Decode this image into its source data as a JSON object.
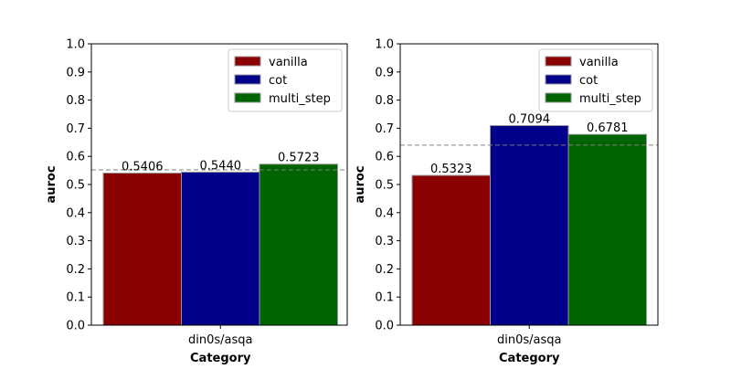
{
  "colors": {
    "vanilla": "#8b0000",
    "cot": "#00008b",
    "multi_step": "#006400",
    "mean_line": "#808080"
  },
  "chart_data": [
    {
      "type": "bar",
      "categories": [
        "din0s/asqa"
      ],
      "series": [
        {
          "name": "vanilla",
          "values": [
            0.5406
          ]
        },
        {
          "name": "cot",
          "values": [
            0.544
          ]
        },
        {
          "name": "multi_step",
          "values": [
            0.5723
          ]
        }
      ],
      "mean_line": 0.552,
      "title": "",
      "xlabel": "Category",
      "ylabel": "auroc",
      "ylim": [
        0,
        1.0
      ],
      "yticks": [
        "0.0",
        "0.1",
        "0.2",
        "0.3",
        "0.4",
        "0.5",
        "0.6",
        "0.7",
        "0.8",
        "0.9",
        "1.0"
      ],
      "legend_position": "top-right",
      "grid": false
    },
    {
      "type": "bar",
      "categories": [
        "din0s/asqa"
      ],
      "series": [
        {
          "name": "vanilla",
          "values": [
            0.5323
          ]
        },
        {
          "name": "cot",
          "values": [
            0.7094
          ]
        },
        {
          "name": "multi_step",
          "values": [
            0.6781
          ]
        }
      ],
      "mean_line": 0.64,
      "title": "",
      "xlabel": "Category",
      "ylabel": "auroc",
      "ylim": [
        0,
        1.0
      ],
      "yticks": [
        "0.0",
        "0.1",
        "0.2",
        "0.3",
        "0.4",
        "0.5",
        "0.6",
        "0.7",
        "0.8",
        "0.9",
        "1.0"
      ],
      "legend_position": "top-right",
      "grid": false
    }
  ]
}
